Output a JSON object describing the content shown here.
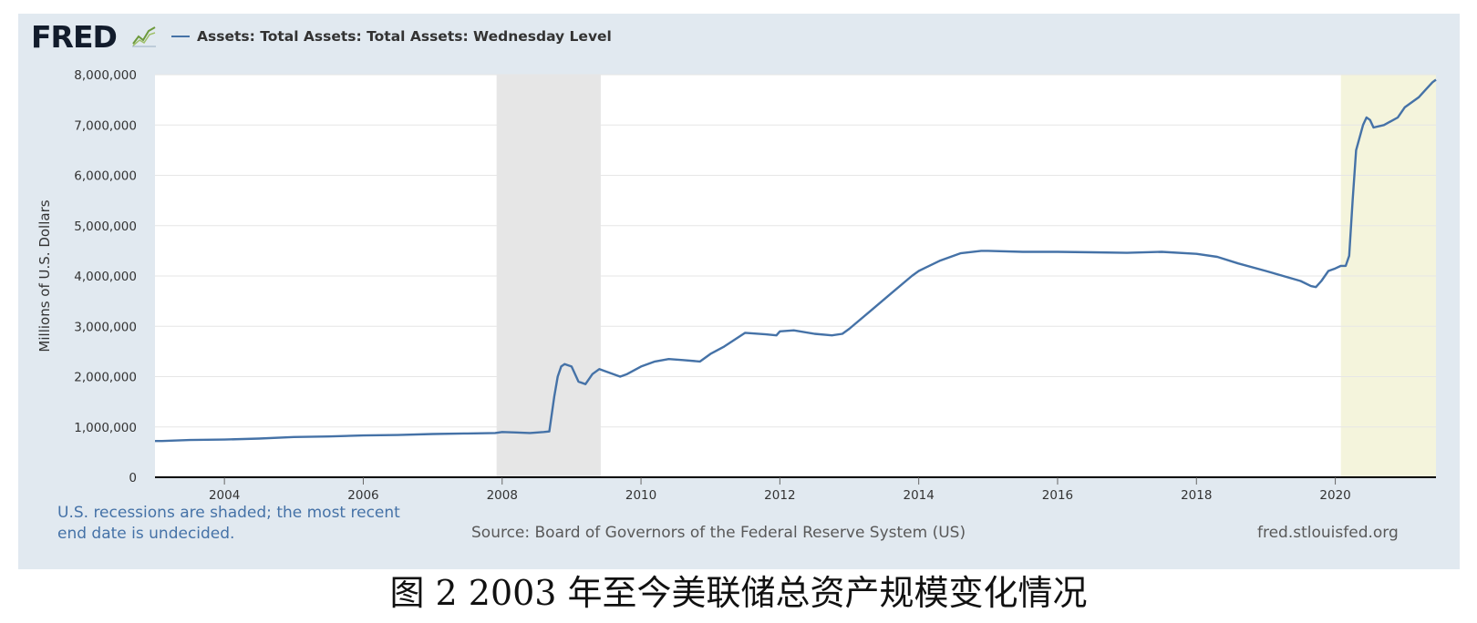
{
  "header": {
    "logo_text": "FRED",
    "logo_icon": "chart-line-icon",
    "legend_label": "Assets: Total Assets: Total Assets: Wednesday Level"
  },
  "footer": {
    "recession_note_line1": "U.S. recessions are shaded; the most recent",
    "recession_note_line2": "end date is undecided.",
    "source": "Source: Board of Governors of the Federal Reserve System (US)",
    "site": "fred.stlouisfed.org"
  },
  "caption": "图 2 2003 年至今美联储总资产规模变化情况",
  "colors": {
    "line": "#4572a7",
    "panel_bg": "#e1e9f0",
    "recession_shade": "#e6e6e6",
    "ongoing_recession_shade": "#f4f4dc"
  },
  "chart_data": {
    "type": "line",
    "title": "",
    "ylabel": "Millions of U.S. Dollars",
    "xlabel": "",
    "xlim": [
      2003.0,
      2021.45
    ],
    "ylim": [
      0,
      8000000
    ],
    "x_ticks": [
      "2004",
      "2006",
      "2008",
      "2010",
      "2012",
      "2014",
      "2016",
      "2018",
      "2020"
    ],
    "y_ticks": [
      "0",
      "1,000,000",
      "2,000,000",
      "3,000,000",
      "4,000,000",
      "5,000,000",
      "6,000,000",
      "7,000,000",
      "8,000,000"
    ],
    "grid": true,
    "legend_position": "top-left",
    "recessions": [
      {
        "start": 2007.92,
        "end": 2009.42
      },
      {
        "start": 2020.08,
        "end": 2021.45
      }
    ],
    "series": [
      {
        "x": [
          2003.0,
          2003.1,
          2003.5,
          2004.0,
          2004.5,
          2005.0,
          2005.5,
          2006.0,
          2006.5,
          2007.0,
          2007.5,
          2007.9,
          2008.0,
          2008.2,
          2008.4,
          2008.6,
          2008.68,
          2008.75,
          2008.8,
          2008.85,
          2008.9,
          2009.0,
          2009.1,
          2009.2,
          2009.3,
          2009.4,
          2009.5,
          2009.6,
          2009.7,
          2009.8,
          2010.0,
          2010.2,
          2010.4,
          2010.6,
          2010.85,
          2011.0,
          2011.2,
          2011.5,
          2011.8,
          2011.95,
          2012.0,
          2012.2,
          2012.5,
          2012.75,
          2012.9,
          2013.0,
          2013.3,
          2013.6,
          2013.9,
          2014.0,
          2014.3,
          2014.6,
          2014.9,
          2015.0,
          2015.5,
          2016.0,
          2016.5,
          2017.0,
          2017.5,
          2018.0,
          2018.3,
          2018.6,
          2019.0,
          2019.5,
          2019.65,
          2019.72,
          2019.8,
          2019.9,
          2020.0,
          2020.08,
          2020.15,
          2020.2,
          2020.25,
          2020.3,
          2020.4,
          2020.45,
          2020.5,
          2020.55,
          2020.7,
          2020.9,
          2021.0,
          2021.2,
          2021.3,
          2021.4,
          2021.45
        ],
        "y": [
          720000,
          720000,
          740000,
          750000,
          770000,
          800000,
          810000,
          830000,
          840000,
          860000,
          870000,
          880000,
          900000,
          890000,
          880000,
          900000,
          910000,
          1600000,
          2000000,
          2200000,
          2250000,
          2200000,
          1900000,
          1850000,
          2050000,
          2150000,
          2100000,
          2050000,
          2000000,
          2050000,
          2200000,
          2300000,
          2350000,
          2330000,
          2300000,
          2450000,
          2600000,
          2870000,
          2840000,
          2820000,
          2900000,
          2920000,
          2850000,
          2820000,
          2850000,
          2950000,
          3300000,
          3650000,
          4000000,
          4100000,
          4300000,
          4450000,
          4500000,
          4500000,
          4480000,
          4480000,
          4470000,
          4460000,
          4480000,
          4440000,
          4380000,
          4250000,
          4100000,
          3900000,
          3800000,
          3780000,
          3900000,
          4100000,
          4150000,
          4200000,
          4200000,
          4400000,
          5500000,
          6500000,
          7000000,
          7150000,
          7100000,
          6950000,
          7000000,
          7150000,
          7350000,
          7550000,
          7700000,
          7850000,
          7900000
        ]
      }
    ]
  }
}
